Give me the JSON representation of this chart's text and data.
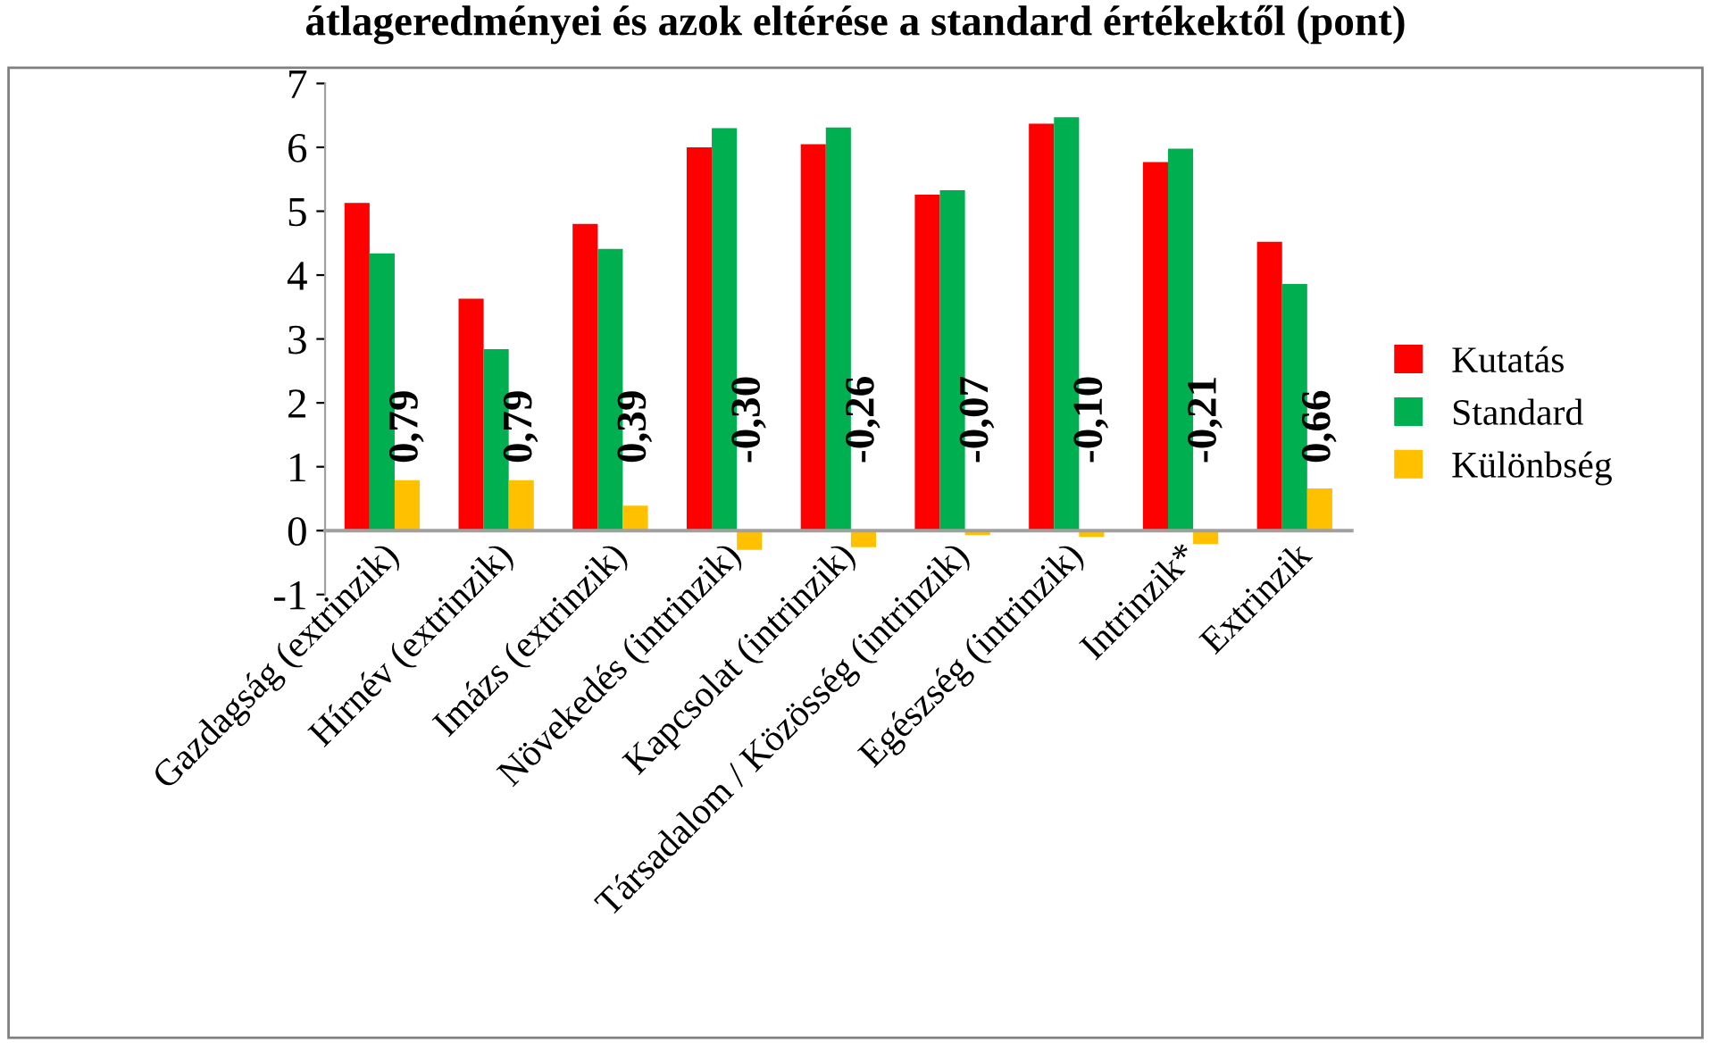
{
  "chart_data": {
    "type": "bar",
    "title": "átlageredményei és azok eltérése a standard értékektől (pont)",
    "categories": [
      "Gazdagság (extrinzik)",
      "Hírnév (extrinzik)",
      "Imázs (extrinzik)",
      "Növekedés (intrinzik)",
      "Kapcsolat (intrinzik)",
      "Társadalom / Közösség (intrinzik)",
      "Egészség (intrinzik)",
      "Intrinzik*",
      "Extrinzik"
    ],
    "series": [
      {
        "name": "Kutatás",
        "color": "#ff0000",
        "values": [
          5.13,
          3.63,
          4.8,
          6.0,
          6.05,
          5.26,
          6.37,
          5.77,
          4.52
        ]
      },
      {
        "name": "Standard",
        "color": "#00b050",
        "values": [
          4.34,
          2.84,
          4.41,
          6.3,
          6.31,
          5.33,
          6.47,
          5.98,
          3.86
        ]
      },
      {
        "name": "Különbség",
        "color": "#ffc000",
        "values": [
          0.79,
          0.79,
          0.39,
          -0.3,
          -0.26,
          -0.07,
          -0.1,
          -0.21,
          0.66
        ],
        "value_labels": [
          "0,79",
          "0,79",
          "0,39",
          "-0,30",
          "-0,26",
          "-0,07",
          "-0,10",
          "-0,21",
          "0,66"
        ]
      }
    ],
    "ylim": [
      -1,
      7
    ],
    "yticks": [
      -1,
      0,
      1,
      2,
      3,
      4,
      5,
      6,
      7
    ],
    "legend": "right"
  }
}
